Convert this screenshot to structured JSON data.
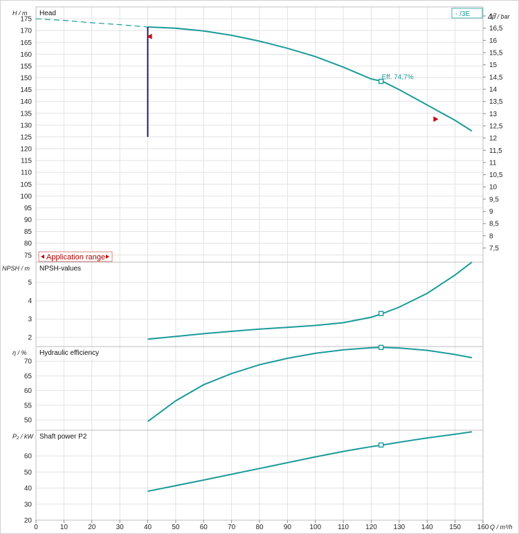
{
  "chart_data": [
    {
      "type": "line",
      "title": "Head",
      "ylabel": "H / m",
      "y2label": "Δp / bar",
      "ylim": [
        72,
        180
      ],
      "yticks": [
        75,
        80,
        85,
        90,
        95,
        100,
        105,
        110,
        115,
        120,
        125,
        130,
        135,
        140,
        145,
        150,
        155,
        160,
        165,
        170,
        175
      ],
      "y2ticks": [
        "17",
        "16,5",
        "16",
        "15,5",
        "15",
        "14,5",
        "14",
        "13,5",
        "13",
        "12,5",
        "12",
        "11,5",
        "11",
        "10,5",
        "10",
        "9,5",
        "9",
        "8,5",
        "8",
        "7,5"
      ],
      "y2values": [
        17,
        16.5,
        16,
        15.5,
        15,
        14.5,
        14,
        13.5,
        13,
        12.5,
        12,
        11.5,
        11,
        10.5,
        10,
        9.5,
        9,
        8.5,
        8,
        7.5
      ],
      "y2lim": [
        6.92,
        17.37
      ],
      "series": [
        {
          "legend": "-  /3E",
          "x": [
            40,
            50,
            60,
            70,
            80,
            90,
            100,
            110,
            120,
            124,
            130,
            140,
            150,
            156
          ],
          "y": [
            171.5,
            171.0,
            169.8,
            168.0,
            165.5,
            162.5,
            159.0,
            154.5,
            149.5,
            148.5,
            145.0,
            138.5,
            132.0,
            127.5
          ]
        }
      ],
      "dashed_extension": {
        "x": [
          0,
          10,
          20,
          30,
          40
        ],
        "y": [
          175.0,
          174.3,
          173.3,
          172.5,
          171.5
        ]
      },
      "min_flow_line": {
        "x": 40,
        "y_from": 125,
        "y_to": 171.5
      },
      "operating_point": {
        "x": 123.5,
        "y": 148.5,
        "label": "Eff.  74,7%"
      },
      "range_markers": [
        {
          "x": 40.5,
          "y": 167.5,
          "direction": "left"
        },
        {
          "x": 143,
          "y": 132.5,
          "direction": "right"
        }
      ],
      "application_range_label": "Application range"
    },
    {
      "type": "line",
      "title": "NPSH-values",
      "ylabel": "NPSH  / m",
      "ylim": [
        1.5,
        6.1
      ],
      "yticks": [
        2,
        3,
        4,
        5
      ],
      "series": [
        {
          "x": [
            40,
            50,
            60,
            70,
            80,
            90,
            100,
            110,
            120,
            124,
            130,
            140,
            150,
            156
          ],
          "y": [
            1.9,
            2.05,
            2.2,
            2.33,
            2.45,
            2.55,
            2.65,
            2.8,
            3.1,
            3.3,
            3.65,
            4.4,
            5.4,
            6.1
          ]
        }
      ],
      "operating_point": {
        "x": 123.5,
        "y": 3.3
      }
    },
    {
      "type": "line",
      "title": "Hydraulic efficiency",
      "ylabel": "η / %",
      "ylim": [
        46.5,
        75
      ],
      "yticks": [
        50,
        55,
        60,
        65,
        70
      ],
      "series": [
        {
          "x": [
            40,
            50,
            60,
            70,
            80,
            90,
            100,
            110,
            120,
            124,
            130,
            140,
            150,
            156
          ],
          "y": [
            49.5,
            56.5,
            62.0,
            65.8,
            68.8,
            71.0,
            72.7,
            73.9,
            74.6,
            74.7,
            74.5,
            73.7,
            72.3,
            71.2
          ]
        }
      ],
      "operating_point": {
        "x": 123.5,
        "y": 74.7
      }
    },
    {
      "type": "line",
      "title": "Shaft power P2",
      "ylabel": "P₂ / kW",
      "xlabel": "Q / m³/h",
      "ylim": [
        20,
        76
      ],
      "yticks": [
        20,
        30,
        40,
        50,
        60
      ],
      "x_lim": [
        0,
        160
      ],
      "xticks": [
        0,
        10,
        20,
        30,
        40,
        50,
        60,
        70,
        80,
        90,
        100,
        110,
        120,
        130,
        140,
        150,
        160
      ],
      "series": [
        {
          "x": [
            40,
            50,
            60,
            70,
            80,
            90,
            100,
            110,
            120,
            124,
            130,
            140,
            150,
            156
          ],
          "y": [
            38.0,
            41.5,
            45.0,
            48.6,
            52.2,
            55.8,
            59.4,
            62.8,
            65.8,
            66.8,
            68.5,
            71.2,
            73.5,
            75.0
          ]
        }
      ],
      "operating_point": {
        "x": 123.5,
        "y": 66.8
      }
    }
  ],
  "colors": {
    "curve": "#1a9a9a",
    "min_flow_line": "#1a1a7a",
    "markers": "#cc0000",
    "grid": "#e2e2e2"
  }
}
